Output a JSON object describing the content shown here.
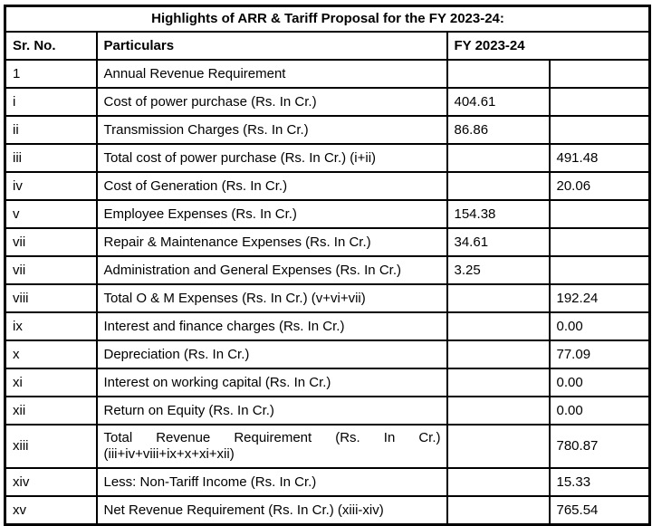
{
  "title": "Highlights of ARR & Tariff Proposal for the FY 2023-24:",
  "header": {
    "sr_no": "Sr. No.",
    "particulars": "Particulars",
    "fy": "FY 2023-24"
  },
  "rows": [
    {
      "sr": "1",
      "particulars": "Annual Revenue Requirement",
      "val1": "",
      "val2": ""
    },
    {
      "sr": "i",
      "particulars": "Cost of power purchase (Rs. In Cr.)",
      "val1": "404.61",
      "val2": ""
    },
    {
      "sr": "ii",
      "particulars": "Transmission Charges (Rs. In Cr.)",
      "val1": "86.86",
      "val2": ""
    },
    {
      "sr": "iii",
      "particulars": "Total cost of power purchase (Rs. In Cr.) (i+ii)",
      "val1": "",
      "val2": "491.48"
    },
    {
      "sr": "iv",
      "particulars": "Cost of Generation (Rs. In Cr.)",
      "val1": "",
      "val2": "20.06"
    },
    {
      "sr": "v",
      "particulars": "Employee Expenses (Rs. In Cr.)",
      "val1": "154.38",
      "val2": ""
    },
    {
      "sr": "vii",
      "particulars": "Repair & Maintenance Expenses (Rs. In Cr.)",
      "val1": "34.61",
      "val2": ""
    },
    {
      "sr": "vii",
      "particulars": "Administration and General Expenses (Rs. In Cr.)",
      "val1": "3.25",
      "val2": ""
    },
    {
      "sr": "viii",
      "particulars": "Total O & M Expenses (Rs. In Cr.) (v+vi+vii)",
      "val1": "",
      "val2": "192.24"
    },
    {
      "sr": "ix",
      "particulars": "Interest and finance charges (Rs. In Cr.)",
      "val1": "",
      "val2": "0.00"
    },
    {
      "sr": "x",
      "particulars": "Depreciation (Rs. In Cr.)",
      "val1": "",
      "val2": "77.09"
    },
    {
      "sr": "xi",
      "particulars": "Interest on working capital (Rs. In Cr.)",
      "val1": "",
      "val2": "0.00"
    },
    {
      "sr": "xii",
      "particulars": "Return on Equity (Rs. In Cr.)",
      "val1": "",
      "val2": "0.00"
    },
    {
      "sr": "xiii",
      "particulars": "Total Revenue Requirement (Rs. In Cr.)",
      "particulars_line2": "(iii+iv+viii+ix+x+xi+xii)",
      "val1": "",
      "val2": "780.87"
    },
    {
      "sr": "xiv",
      "particulars": "Less: Non-Tariff Income (Rs. In Cr.)",
      "val1": "",
      "val2": "15.33"
    },
    {
      "sr": "xv",
      "particulars": "Net Revenue Requirement (Rs. In Cr.) (xiii-xiv)",
      "val1": "",
      "val2": "765.54"
    }
  ]
}
